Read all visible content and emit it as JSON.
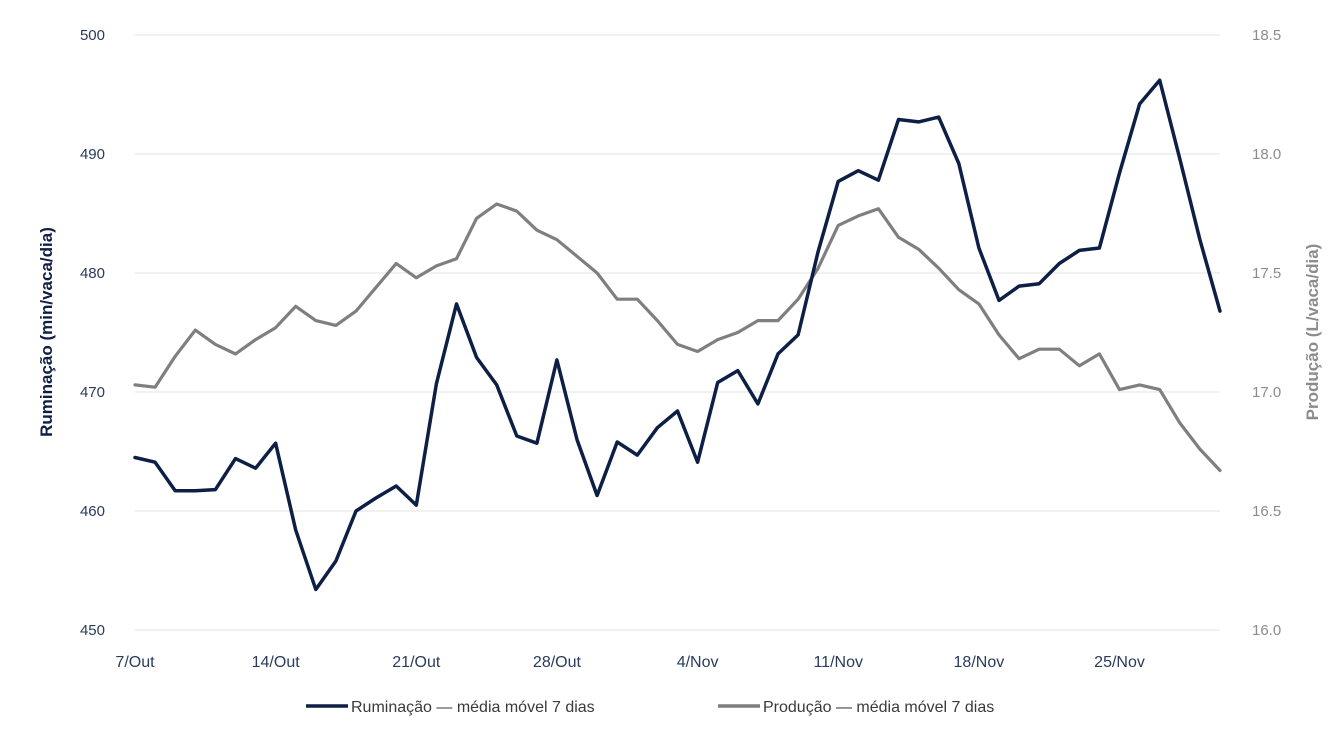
{
  "chart_data": {
    "type": "line",
    "title": "",
    "xlabel": "",
    "ylabel_left": "Ruminação (min/vaca/dia)",
    "ylabel_right": "Produção (L/vaca/dia)",
    "ylim_left": [
      450,
      500
    ],
    "ylim_right": [
      16.0,
      18.5
    ],
    "yticks_left": [
      "450",
      "460",
      "470",
      "480",
      "490",
      "500"
    ],
    "yticks_right": [
      "16.0",
      "16.5",
      "17.0",
      "17.5",
      "18.0",
      "18.5"
    ],
    "x_tick_labels": [
      {
        "index": 0,
        "label": "7/Out"
      },
      {
        "index": 7,
        "label": "14/Out"
      },
      {
        "index": 14,
        "label": "21/Out"
      },
      {
        "index": 21,
        "label": "28/Out"
      },
      {
        "index": 28,
        "label": "4/Nov"
      },
      {
        "index": 35,
        "label": "11/Nov"
      },
      {
        "index": 42,
        "label": "18/Nov"
      },
      {
        "index": 49,
        "label": "25/Nov"
      }
    ],
    "x_count": 55,
    "grid": "horizontal",
    "legend_position": "bottom",
    "colors": {
      "rumination": "#0d1f45",
      "production": "#7f7f7f",
      "grid": "#e3e3e3"
    },
    "series": [
      {
        "name": "Ruminação — média móvel 7 dias",
        "axis": "left",
        "values": [
          464.5,
          464.1,
          461.7,
          461.7,
          461.8,
          464.4,
          463.6,
          465.7,
          458.4,
          453.4,
          455.8,
          460.0,
          461.1,
          462.1,
          460.5,
          470.7,
          477.4,
          472.9,
          470.6,
          466.3,
          465.7,
          472.7,
          466.0,
          461.3,
          465.8,
          464.7,
          467.0,
          468.4,
          464.1,
          470.8,
          471.8,
          469.0,
          473.2,
          474.8,
          481.8,
          487.7,
          488.6,
          487.8,
          492.9,
          492.7,
          493.1,
          489.2,
          482.1,
          477.7,
          478.9,
          479.1,
          480.8,
          481.9,
          482.1,
          488.4,
          494.2,
          496.2,
          489.6,
          482.8,
          476.8
        ]
      },
      {
        "name": "Produção — média móvel 7 dias",
        "axis": "right",
        "values": [
          17.03,
          17.02,
          17.15,
          17.26,
          17.2,
          17.16,
          17.22,
          17.27,
          17.36,
          17.3,
          17.28,
          17.34,
          17.44,
          17.54,
          17.48,
          17.53,
          17.56,
          17.73,
          17.79,
          17.76,
          17.68,
          17.64,
          17.57,
          17.5,
          17.39,
          17.39,
          17.3,
          17.2,
          17.17,
          17.22,
          17.25,
          17.3,
          17.3,
          17.39,
          17.52,
          17.7,
          17.74,
          17.77,
          17.65,
          17.6,
          17.52,
          17.43,
          17.37,
          17.24,
          17.14,
          17.18,
          17.18,
          17.11,
          17.16,
          17.01,
          17.03,
          17.01,
          16.87,
          16.76,
          16.67
        ]
      }
    ]
  }
}
